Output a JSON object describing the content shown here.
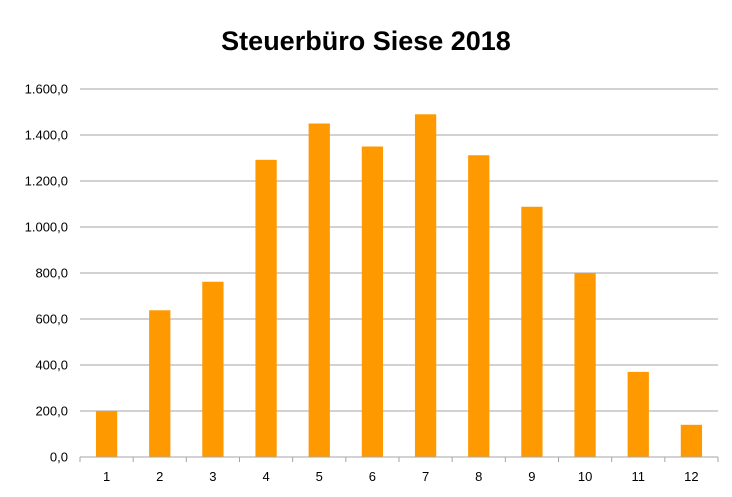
{
  "chart_data": {
    "type": "bar",
    "title": "Steuerbüro Siese 2018",
    "xlabel": "",
    "ylabel": "",
    "categories": [
      "1",
      "2",
      "3",
      "4",
      "5",
      "6",
      "7",
      "8",
      "9",
      "10",
      "11",
      "12"
    ],
    "values": [
      200,
      638,
      762,
      1292,
      1450,
      1350,
      1490,
      1312,
      1088,
      800,
      370,
      140
    ],
    "ylim": [
      0,
      1600
    ],
    "yticks": [
      "0,0",
      "200,0",
      "400,0",
      "600,0",
      "800,0",
      "1.000,0",
      "1.200,0",
      "1.400,0",
      "1.600,0"
    ],
    "grid": true,
    "legend": "none",
    "bar_color": "#FF9900",
    "grid_color": "#A6A6A6"
  }
}
